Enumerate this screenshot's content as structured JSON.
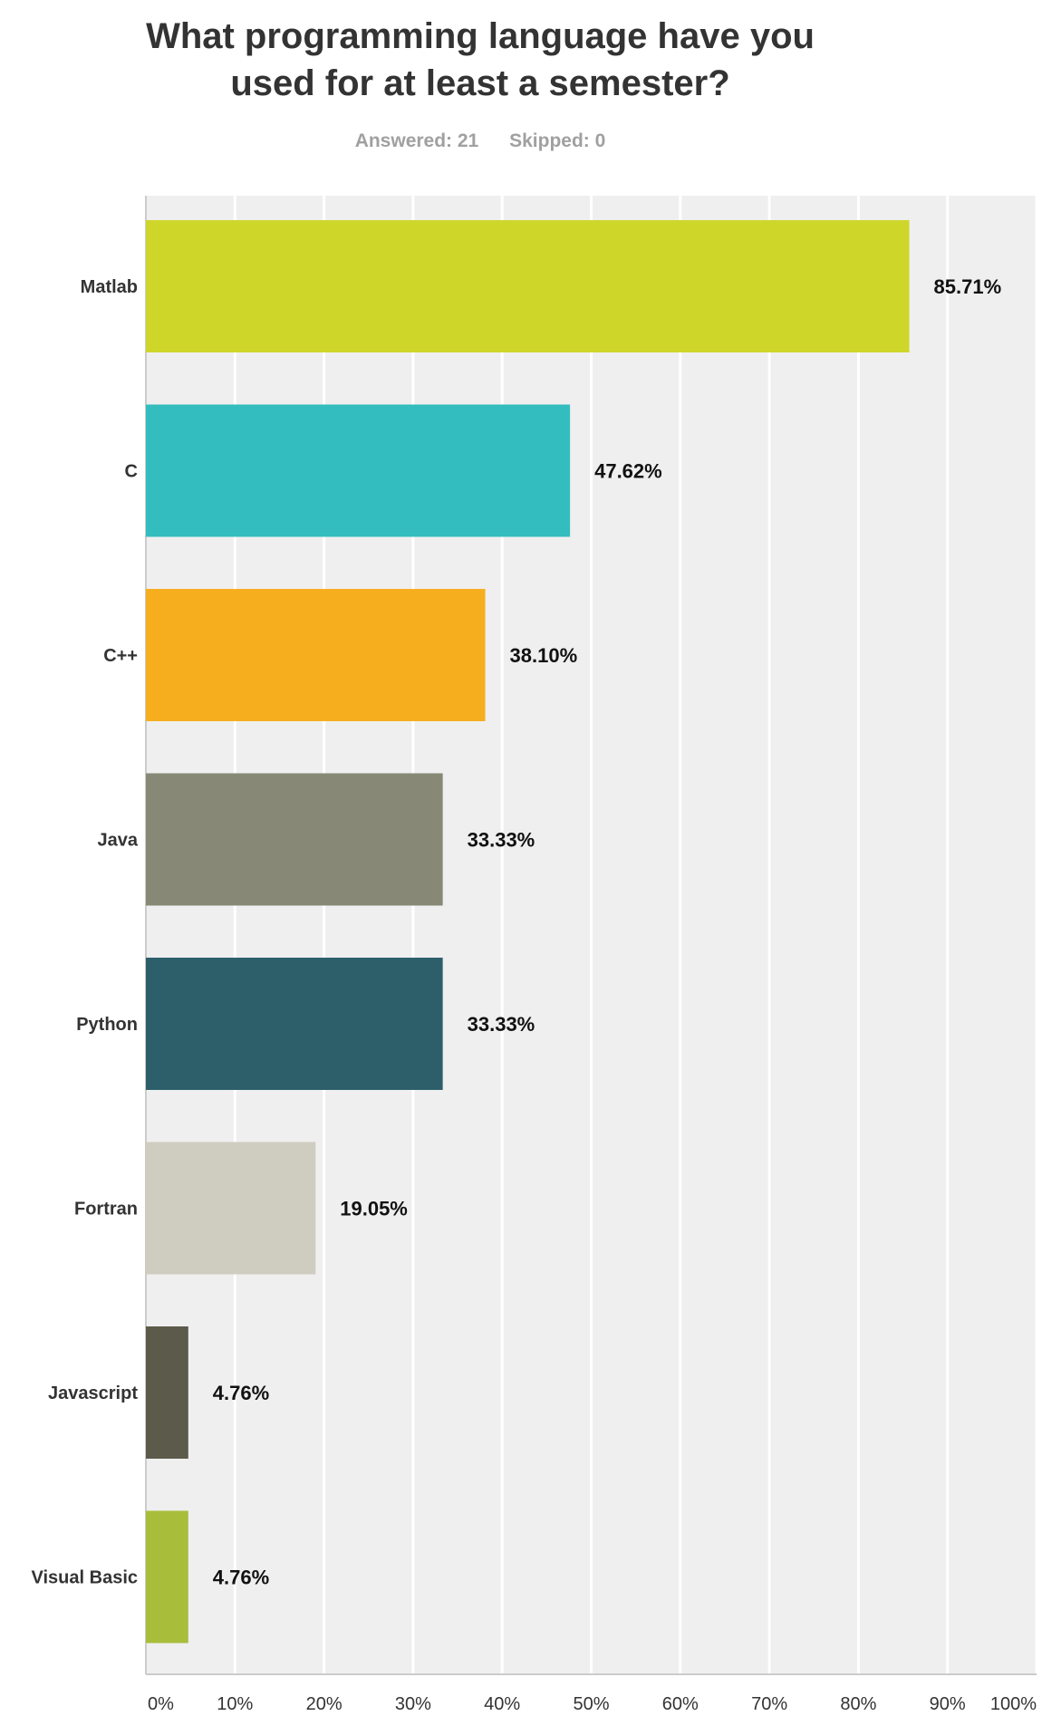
{
  "header": {
    "title_line1": "What programming language have you",
    "title_line2": "used for at least a semester?",
    "answered": "Answered: 21",
    "skipped": "Skipped: 0"
  },
  "chart_data": {
    "type": "bar",
    "orientation": "horizontal",
    "categories": [
      "Matlab",
      "C",
      "C++",
      "Java",
      "Python",
      "Fortran",
      "Javascript",
      "Visual Basic"
    ],
    "values": [
      85.71,
      47.62,
      38.1,
      33.33,
      33.33,
      19.05,
      4.76,
      4.76
    ],
    "value_labels": [
      "85.71%",
      "47.62%",
      "38.10%",
      "33.33%",
      "33.33%",
      "19.05%",
      "4.76%",
      "4.76%"
    ],
    "colors": [
      "#cfd62a",
      "#33bdbf",
      "#f6ae1e",
      "#878876",
      "#2d5f6b",
      "#cfcdbf",
      "#5c5a4a",
      "#a8bd3a"
    ],
    "xlim": [
      0,
      100
    ],
    "x_ticks": [
      0,
      10,
      20,
      30,
      40,
      50,
      60,
      70,
      80,
      90,
      100
    ],
    "x_tick_labels": [
      "0%",
      "10%",
      "20%",
      "30%",
      "40%",
      "50%",
      "60%",
      "70%",
      "80%",
      "90%",
      "100%"
    ],
    "grid": true,
    "plot_background": "#efefef"
  }
}
